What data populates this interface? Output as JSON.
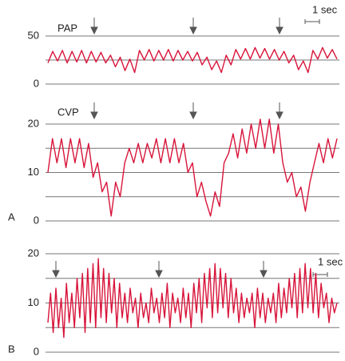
{
  "chart_data": [
    {
      "type": "line",
      "annotation": "PAP",
      "scale_label": "1 sec",
      "ylim": [
        0,
        50
      ],
      "yticks": [
        0,
        50
      ],
      "gridlines": [
        0,
        25,
        50
      ],
      "series": [
        {
          "color": "#d8143a",
          "values": [
            22,
            34,
            24,
            35,
            22,
            34,
            23,
            35,
            22,
            34,
            23,
            33,
            22,
            30,
            18,
            28,
            14,
            26,
            12,
            35,
            25,
            36,
            24,
            35,
            25,
            36,
            24,
            35,
            25,
            34,
            24,
            33,
            20,
            28,
            15,
            24,
            12,
            30,
            20,
            36,
            26,
            37,
            26,
            38,
            27,
            37,
            26,
            36,
            25,
            34,
            22,
            30,
            15,
            24,
            12,
            35,
            26,
            38,
            27,
            36,
            26
          ]
        }
      ]
    },
    {
      "type": "line",
      "annotation": "CVP",
      "panel_label": "A",
      "ylim": [
        0,
        20
      ],
      "yticks": [
        0,
        10,
        20
      ],
      "gridlines": [
        0,
        5,
        10,
        15,
        20
      ],
      "series": [
        {
          "color": "#d8143a",
          "values": [
            10,
            17,
            12,
            17,
            11,
            17,
            12,
            17,
            11,
            16,
            9,
            12,
            6,
            8,
            1,
            8,
            5,
            12,
            15,
            12,
            16,
            12,
            16,
            13,
            17,
            12,
            17,
            12,
            17,
            12,
            16,
            10,
            12,
            5,
            8,
            4,
            1,
            6,
            3,
            12,
            14,
            18,
            13,
            19,
            14,
            20,
            15,
            21,
            15,
            21,
            14,
            20,
            12,
            8,
            10,
            5,
            7,
            2,
            8,
            12,
            16,
            12,
            17,
            13,
            17
          ]
        }
      ]
    },
    {
      "type": "line",
      "panel_label": "B",
      "scale_label": "1 sec",
      "ylim": [
        0,
        20
      ],
      "yticks": [
        0,
        10,
        20
      ],
      "gridlines": [
        0,
        5,
        10,
        15,
        20
      ],
      "series": [
        {
          "color": "#d8143a",
          "values": [
            6,
            12,
            4,
            13,
            5,
            11,
            3,
            14,
            6,
            12,
            5,
            15,
            7,
            16,
            4,
            17,
            6,
            18,
            5,
            19,
            7,
            17,
            6,
            16,
            8,
            15,
            5,
            14,
            7,
            12,
            6,
            13,
            8,
            11,
            5,
            12,
            7,
            10,
            6,
            13,
            8,
            11,
            6,
            12,
            7,
            14,
            5,
            12,
            8,
            11,
            6,
            13,
            7,
            12,
            5,
            14,
            8,
            15,
            6,
            16,
            9,
            17,
            7,
            18,
            8,
            17,
            9,
            16,
            7,
            15,
            8,
            13,
            6,
            12,
            7,
            11,
            8,
            12,
            5,
            13,
            7,
            12,
            6,
            11,
            8,
            12,
            6,
            14,
            7,
            13,
            8,
            15,
            9,
            16,
            7,
            17,
            8,
            18,
            9,
            17,
            8,
            16,
            7,
            14,
            9,
            12,
            6,
            11,
            8,
            10
          ]
        }
      ]
    }
  ]
}
